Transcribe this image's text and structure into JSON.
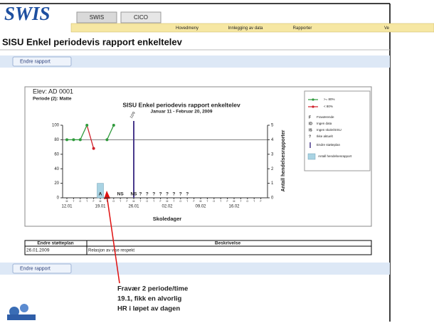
{
  "header": {
    "logo": "SWIS",
    "tabs": [
      "SWIS",
      "CICO"
    ],
    "menu": [
      "Hovedmeny",
      "Innlegging av data",
      "Rapporter",
      "Ve"
    ]
  },
  "page_title": "SISU Enkel periodevis rapport enkeltelev",
  "toolbar_button": "Endre rapport",
  "report": {
    "student": "Elev: AD 0001",
    "period": "Periode (2): Matte",
    "chart_data": {
      "type": "line",
      "title": "SISU Enkel periodevis rapport enkeltelev",
      "subtitle": "Januar 11 - Februar 20, 2009",
      "xlabel": "Skoledager",
      "y2label": "Antall hendelsesrapporter",
      "weeks": [
        {
          "label": "12.01",
          "days": [
            "M",
            "T",
            "O",
            "T",
            "F"
          ]
        },
        {
          "label": "19.01",
          "days": [
            "M",
            "T",
            "O",
            "T",
            "F"
          ]
        },
        {
          "label": "26.01",
          "days": [
            "M",
            "T",
            "O",
            "T",
            "F"
          ]
        },
        {
          "label": "02.02",
          "days": [
            "M",
            "T",
            "O",
            "T",
            "F"
          ]
        },
        {
          "label": "09.02",
          "days": [
            "M",
            "T",
            "O",
            "T",
            "F"
          ]
        },
        {
          "label": "16.02",
          "days": [
            "M",
            "T",
            "O",
            "T",
            "F"
          ]
        }
      ],
      "series": [
        {
          "name": ">= 80%",
          "color": "#2f9a3c",
          "values": [
            80,
            80,
            80,
            100,
            null,
            null,
            80,
            100,
            null,
            null,
            null,
            null,
            null,
            null,
            null,
            null,
            null,
            null,
            null,
            null,
            null,
            null,
            null,
            null,
            null,
            null,
            null,
            null,
            null,
            null
          ]
        },
        {
          "name": "< 80%",
          "color": "#d0202a",
          "values": [
            null,
            null,
            null,
            null,
            68,
            null,
            null,
            null,
            null,
            null,
            null,
            null,
            null,
            null,
            null,
            null,
            null,
            null,
            null,
            null,
            null,
            null,
            null,
            null,
            null,
            null,
            null,
            null,
            null,
            null
          ]
        }
      ],
      "codes": [
        null,
        null,
        null,
        null,
        null,
        "A",
        null,
        null,
        "NS",
        null,
        "NS",
        "?",
        "?",
        "?",
        "?",
        "?",
        "?",
        "?",
        "?",
        null,
        null,
        null,
        null,
        null,
        null,
        null,
        null,
        null,
        null,
        null
      ],
      "code_legend": [
        {
          "code": "F",
          "text": "Fraværende"
        },
        {
          "code": "ID",
          "text": "Ingen data"
        },
        {
          "code": "IS",
          "text": "Ingen skole/SISU"
        },
        {
          "code": "?",
          "text": "Ikke aktuelt"
        }
      ],
      "bars": {
        "name": "Antall hendelsesrapport",
        "color": "#a9d3e3",
        "axis": "y2",
        "values": [
          null,
          null,
          null,
          null,
          null,
          1,
          null,
          null,
          null,
          null,
          null,
          null,
          null,
          null,
          null,
          null,
          null,
          null,
          null,
          null,
          null,
          null,
          null,
          null,
          null,
          null,
          null,
          null,
          null,
          null
        ]
      },
      "plan_change": {
        "name": "Endre støtteplan",
        "date": "26.01",
        "color": "#4a3a8c",
        "annotation": "12/9"
      },
      "reference_line": 80,
      "ylim": [
        0,
        100
      ],
      "yticks": [
        0,
        20,
        40,
        60,
        80,
        100
      ],
      "y2lim": [
        0,
        5
      ],
      "y2ticks": [
        0,
        1,
        2,
        3,
        4,
        5
      ]
    }
  },
  "plan_table": {
    "headers": [
      "Endre støtteplan",
      "Beskrivelse"
    ],
    "rows": [
      [
        "26.01.2009",
        "Relasjon av vise respekt"
      ]
    ]
  },
  "bottom_button": "Endre rapport",
  "callout": [
    "Fravær 2 periode/time",
    "19.1, fikk en alvorlig",
    "HR i løpet av dagen"
  ]
}
